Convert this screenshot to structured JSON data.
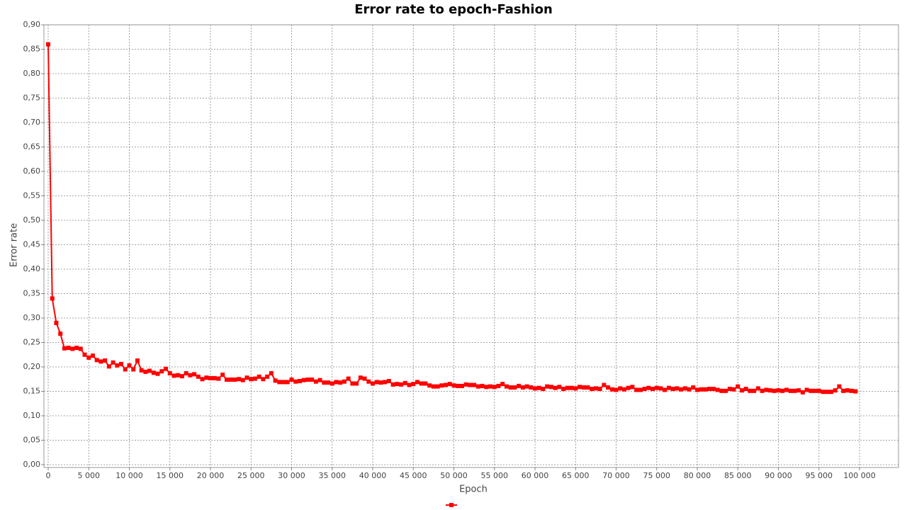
{
  "chart_data": {
    "type": "line",
    "title": "Error rate to epoch-Fashion",
    "x_label": "Epoch",
    "y_label": "Error rate",
    "xlim": [
      0,
      104800
    ],
    "ylim": [
      0,
      0.9
    ],
    "grid": true,
    "xticks": [
      0,
      {
        "value": 5000,
        "label": "5 000"
      },
      {
        "value": 10000,
        "label": "10 000"
      },
      {
        "value": 15000,
        "label": "15 000"
      },
      {
        "value": 20000,
        "label": "20 000"
      },
      {
        "value": 25000,
        "label": "25 000"
      },
      {
        "value": 30000,
        "label": "30 000"
      },
      {
        "value": 35000,
        "label": "35 000"
      },
      {
        "value": 40000,
        "label": "40 000"
      },
      {
        "value": 45000,
        "label": "45 000"
      },
      {
        "value": 50000,
        "label": "50 000"
      },
      {
        "value": 55000,
        "label": "55 000"
      },
      {
        "value": 60000,
        "label": "60 000"
      },
      {
        "value": 65000,
        "label": "65 000"
      },
      {
        "value": 70000,
        "label": "70 000"
      },
      {
        "value": 75000,
        "label": "75 000"
      },
      {
        "value": 80000,
        "label": "80 000"
      },
      {
        "value": 85000,
        "label": "85 000"
      },
      {
        "value": 90000,
        "label": "90 000"
      },
      {
        "value": 95000,
        "label": "95 000"
      },
      {
        "value": 100000,
        "label": "100 000"
      }
    ],
    "yticks": [
      {
        "value": 0,
        "label": "0,00"
      },
      {
        "value": 0.05,
        "label": "0,05"
      },
      {
        "value": 0.1,
        "label": "0,10"
      },
      {
        "value": 0.15,
        "label": "0,15"
      },
      {
        "value": 0.2,
        "label": "0,20"
      },
      {
        "value": 0.25,
        "label": "0,25"
      },
      {
        "value": 0.3,
        "label": "0,30"
      },
      {
        "value": 0.35,
        "label": "0,35"
      },
      {
        "value": 0.4,
        "label": "0,40"
      },
      {
        "value": 0.45,
        "label": "0,45"
      },
      {
        "value": 0.5,
        "label": "0,50"
      },
      {
        "value": 0.55,
        "label": "0,55"
      },
      {
        "value": 0.6,
        "label": "0,60"
      },
      {
        "value": 0.65,
        "label": "0,65"
      },
      {
        "value": 0.7,
        "label": "0,70"
      },
      {
        "value": 0.75,
        "label": "0,75"
      },
      {
        "value": 0.8,
        "label": "0,80"
      },
      {
        "value": 0.85,
        "label": "0,85"
      },
      {
        "value": 0.9,
        "label": "0,90"
      }
    ],
    "x": [
      0,
      500,
      1000,
      1500,
      2000,
      2500,
      3000,
      3500,
      4000,
      4500,
      5000,
      5500,
      6000,
      6500,
      7000,
      7500,
      8000,
      8500,
      9000,
      9500,
      10000,
      10500,
      11000,
      11500,
      12000,
      12500,
      13000,
      13500,
      14000,
      14500,
      15000,
      15500,
      16000,
      16500,
      17000,
      17500,
      18000,
      18500,
      19000,
      19500,
      20000,
      20500,
      21000,
      21500,
      22000,
      22500,
      23000,
      23500,
      24000,
      24500,
      25000,
      25500,
      26000,
      26500,
      27000,
      27500,
      28000,
      28500,
      29000,
      29500,
      30000,
      30500,
      31000,
      31500,
      32000,
      32500,
      33000,
      33500,
      34000,
      34500,
      35000,
      35500,
      36000,
      36500,
      37000,
      37500,
      38000,
      38500,
      39000,
      39500,
      40000,
      40500,
      41000,
      41500,
      42000,
      42500,
      43000,
      43500,
      44000,
      44500,
      45000,
      45500,
      46000,
      46500,
      47000,
      47500,
      48000,
      48500,
      49000,
      49500,
      50000,
      50500,
      51000,
      51500,
      52000,
      52500,
      53000,
      53500,
      54000,
      54500,
      55000,
      55500,
      56000,
      56500,
      57000,
      57500,
      58000,
      58500,
      59000,
      59500,
      60000,
      60500,
      61000,
      61500,
      62000,
      62500,
      63000,
      63500,
      64000,
      64500,
      65000,
      65500,
      66000,
      66500,
      67000,
      67500,
      68000,
      68500,
      69000,
      69500,
      70000,
      70500,
      71000,
      71500,
      72000,
      72500,
      73000,
      73500,
      74000,
      74500,
      75000,
      75500,
      76000,
      76500,
      77000,
      77500,
      78000,
      78500,
      79000,
      79500,
      80000,
      80500,
      81000,
      81500,
      82000,
      82500,
      83000,
      83500,
      84000,
      84500,
      85000,
      85500,
      86000,
      86500,
      87000,
      87500,
      88000,
      88500,
      89000,
      89500,
      90000,
      90500,
      91000,
      91500,
      92000,
      92500,
      93000,
      93500,
      94000,
      94500,
      95000,
      95500,
      96000,
      96500,
      97000,
      97500,
      98000,
      98500,
      99000,
      99500
    ],
    "series": [
      {
        "color": "#ff0000",
        "values": [
          0.86,
          0.34,
          0.29,
          0.268,
          0.238,
          0.239,
          0.237,
          0.239,
          0.237,
          0.225,
          0.219,
          0.223,
          0.214,
          0.211,
          0.213,
          0.201,
          0.209,
          0.203,
          0.206,
          0.195,
          0.203,
          0.195,
          0.213,
          0.193,
          0.19,
          0.192,
          0.188,
          0.186,
          0.191,
          0.196,
          0.187,
          0.182,
          0.183,
          0.181,
          0.187,
          0.183,
          0.185,
          0.18,
          0.175,
          0.178,
          0.177,
          0.177,
          0.176,
          0.184,
          0.174,
          0.174,
          0.174,
          0.175,
          0.173,
          0.178,
          0.175,
          0.176,
          0.18,
          0.175,
          0.18,
          0.187,
          0.172,
          0.169,
          0.169,
          0.169,
          0.174,
          0.17,
          0.171,
          0.173,
          0.174,
          0.174,
          0.17,
          0.173,
          0.168,
          0.168,
          0.166,
          0.169,
          0.168,
          0.17,
          0.176,
          0.166,
          0.166,
          0.178,
          0.176,
          0.17,
          0.166,
          0.169,
          0.168,
          0.169,
          0.171,
          0.164,
          0.165,
          0.164,
          0.167,
          0.163,
          0.165,
          0.169,
          0.166,
          0.166,
          0.162,
          0.16,
          0.16,
          0.162,
          0.163,
          0.165,
          0.162,
          0.161,
          0.161,
          0.164,
          0.163,
          0.163,
          0.16,
          0.161,
          0.159,
          0.16,
          0.159,
          0.161,
          0.165,
          0.16,
          0.158,
          0.158,
          0.161,
          0.158,
          0.16,
          0.158,
          0.156,
          0.157,
          0.155,
          0.16,
          0.159,
          0.157,
          0.159,
          0.155,
          0.157,
          0.157,
          0.156,
          0.159,
          0.158,
          0.158,
          0.155,
          0.156,
          0.155,
          0.163,
          0.158,
          0.154,
          0.153,
          0.156,
          0.154,
          0.157,
          0.159,
          0.153,
          0.153,
          0.155,
          0.157,
          0.155,
          0.157,
          0.156,
          0.153,
          0.157,
          0.155,
          0.156,
          0.154,
          0.156,
          0.154,
          0.158,
          0.153,
          0.154,
          0.154,
          0.155,
          0.155,
          0.153,
          0.151,
          0.151,
          0.155,
          0.154,
          0.16,
          0.152,
          0.155,
          0.151,
          0.151,
          0.156,
          0.151,
          0.153,
          0.152,
          0.151,
          0.152,
          0.151,
          0.153,
          0.151,
          0.151,
          0.152,
          0.148,
          0.153,
          0.151,
          0.151,
          0.151,
          0.149,
          0.149,
          0.149,
          0.152,
          0.16,
          0.151,
          0.152,
          0.151,
          0.15
        ]
      }
    ]
  }
}
